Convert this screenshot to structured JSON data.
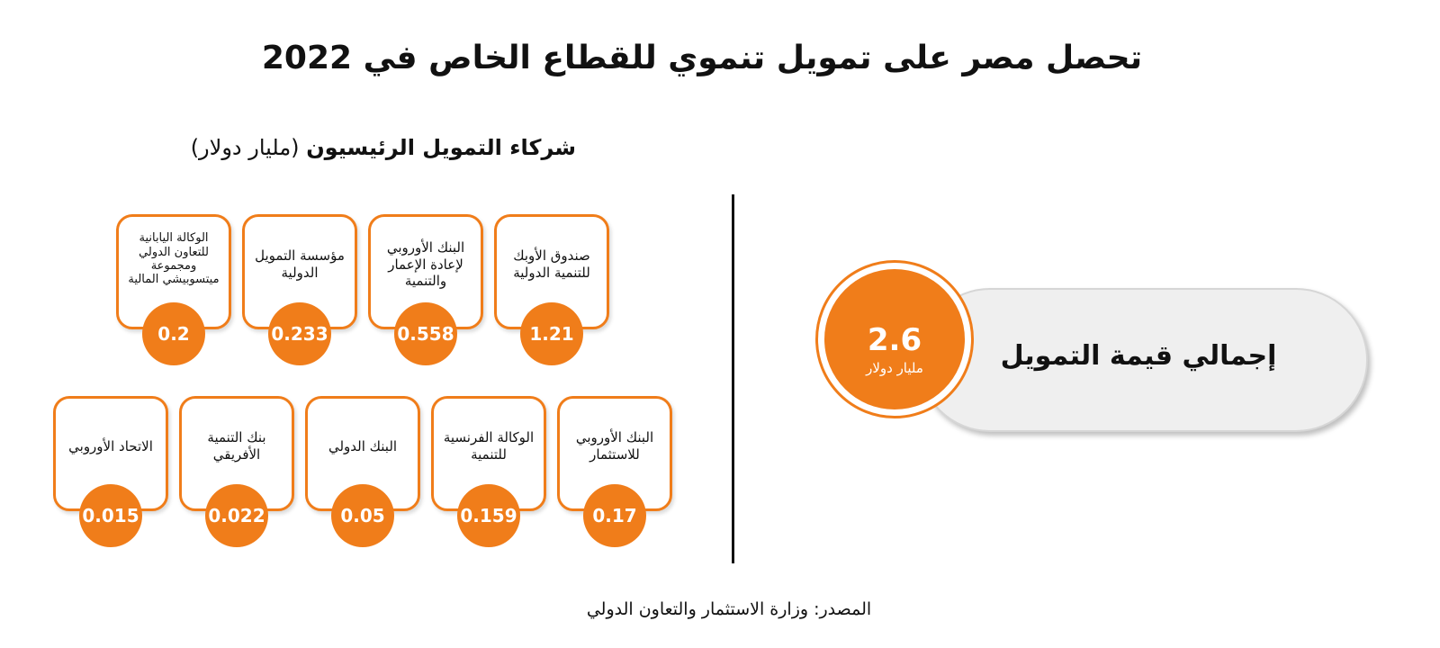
{
  "title": "تحصل مصر على تمويل تنموي للقطاع الخاص في 2022",
  "subtitle": {
    "strong": "شركاء التمويل الرئيسيون",
    "unit": "(مليار دولار)"
  },
  "total": {
    "label": "إجمالي قيمة التمويل",
    "value": "2.6",
    "unit": "مليار دولار"
  },
  "source": "المصدر: وزارة الاستثمار والتعاون الدولي",
  "colors": {
    "accent": "#f07d1a",
    "pill": "#efefef"
  },
  "chart_data": {
    "type": "table",
    "title": "تحصل مصر على تمويل تنموي للقطاع الخاص في 2022",
    "unit": "مليار دولار",
    "total": 2.6,
    "categories": [
      "صندوق الأوبك للتنمية الدولية",
      "البنك الأوروبي لإعادة الإعمار والتنمية",
      "مؤسسة التمويل الدولية",
      "الوكالة اليابانية للتعاون الدولي ومجموعة ميتسوبيشي المالية",
      "البنك الأوروبي للاستثمار",
      "الوكالة الفرنسية للتنمية",
      "البنك الدولي",
      "بنك التنمية الأفريقي",
      "الاتحاد الأوروبي"
    ],
    "values": [
      1.21,
      0.558,
      0.233,
      0.2,
      0.17,
      0.159,
      0.05,
      0.022,
      0.015
    ],
    "labels": [
      "1.21",
      "0.558",
      "0.233",
      "0.2",
      "0.17",
      "0.159",
      "0.05",
      "0.022",
      "0.015"
    ]
  }
}
